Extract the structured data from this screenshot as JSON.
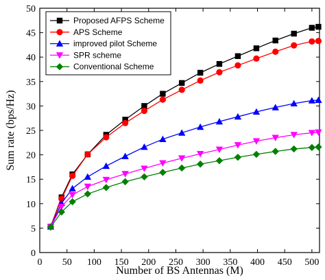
{
  "chart_data": {
    "type": "line",
    "title": "",
    "xlabel": "Number of BS Antennas (M)",
    "ylabel": "Sum rate (bps/Hz)",
    "xlim": [
      0,
      514
    ],
    "ylim": [
      0,
      50
    ],
    "xticks": [
      0,
      50,
      100,
      150,
      200,
      250,
      300,
      350,
      400,
      450,
      500
    ],
    "yticks": [
      0,
      5,
      10,
      15,
      20,
      25,
      30,
      35,
      40,
      45,
      50
    ],
    "grid": false,
    "legend_position": "top-left",
    "x": [
      20,
      40,
      60,
      88,
      122,
      157,
      192,
      226,
      261,
      295,
      330,
      364,
      398,
      433,
      467,
      500,
      512
    ],
    "series": [
      {
        "name": "Proposed AFPS Scheme",
        "color": "#000000",
        "marker": "square",
        "values": [
          5.3,
          11.3,
          16.0,
          20.1,
          24.1,
          27.2,
          30.0,
          32.5,
          34.7,
          36.8,
          38.6,
          40.2,
          41.8,
          43.4,
          44.8,
          46.0,
          46.2
        ]
      },
      {
        "name": "APS Scheme",
        "color": "#ff0000",
        "marker": "circle",
        "values": [
          5.3,
          11.0,
          15.7,
          20.1,
          23.6,
          26.5,
          29.0,
          31.3,
          33.3,
          35.2,
          36.9,
          38.3,
          39.7,
          41.1,
          42.4,
          43.2,
          43.3
        ]
      },
      {
        "name": "improved pilot Scheme",
        "color": "#0000ff",
        "marker": "triangle-up",
        "values": [
          5.3,
          10.1,
          13.1,
          15.5,
          17.7,
          19.7,
          21.6,
          23.2,
          24.5,
          25.7,
          26.8,
          27.8,
          28.8,
          29.7,
          30.5,
          31.1,
          31.2
        ]
      },
      {
        "name": "SPR scheme",
        "color": "#ff00ff",
        "marker": "triangle-down",
        "values": [
          5.3,
          9.4,
          11.8,
          13.5,
          14.9,
          16.1,
          17.2,
          18.3,
          19.3,
          20.2,
          21.1,
          22.0,
          22.8,
          23.5,
          24.1,
          24.5,
          24.6
        ]
      },
      {
        "name": "Conventional Scheme",
        "color": "#008000",
        "marker": "diamond",
        "values": [
          5.2,
          8.3,
          10.4,
          12.0,
          13.3,
          14.5,
          15.5,
          16.4,
          17.3,
          18.1,
          18.8,
          19.5,
          20.1,
          20.7,
          21.2,
          21.5,
          21.6
        ]
      }
    ]
  }
}
